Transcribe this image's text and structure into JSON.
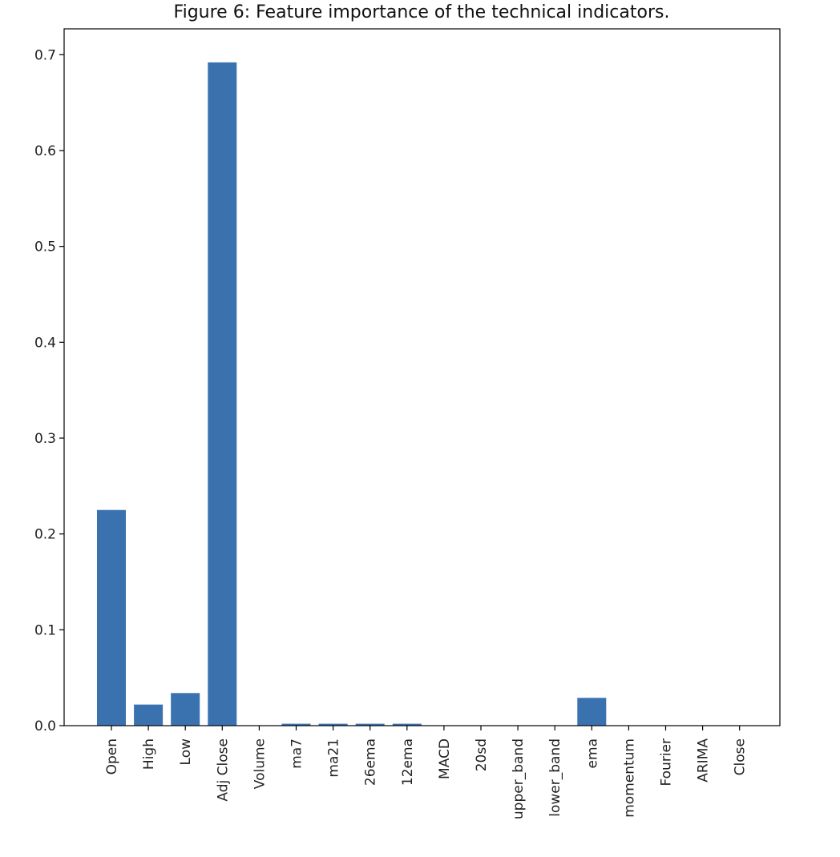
{
  "chart_data": {
    "type": "bar",
    "title": "Figure 6: Feature importance of the technical indicators.",
    "xlabel": "",
    "ylabel": "",
    "categories": [
      "Open",
      "High",
      "Low",
      "Adj Close",
      "Volume",
      "ma7",
      "ma21",
      "26ema",
      "12ema",
      "MACD",
      "20sd",
      "upper_band",
      "lower_band",
      "ema",
      "momentum",
      "Fourier",
      "ARIMA",
      "Close"
    ],
    "values": [
      0.225,
      0.022,
      0.034,
      0.692,
      0.0,
      0.002,
      0.002,
      0.002,
      0.002,
      0.0,
      0.0,
      0.0,
      0.0,
      0.029,
      0.0,
      0.0,
      0.0,
      0.0
    ],
    "ylim": [
      0,
      0.727
    ],
    "yticks": [
      "0.0",
      "0.1",
      "0.2",
      "0.3",
      "0.4",
      "0.5",
      "0.6",
      "0.7"
    ],
    "bar_color": "#3a72b0",
    "grid": false,
    "legend": "none"
  }
}
